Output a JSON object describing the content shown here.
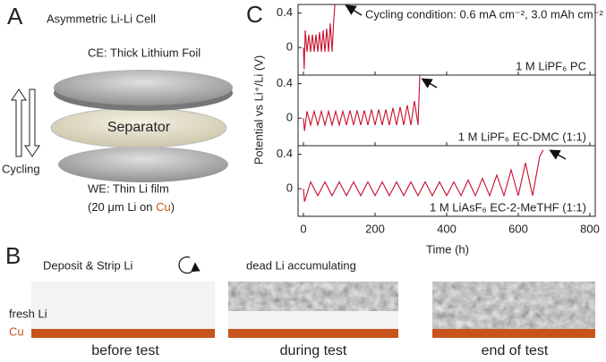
{
  "panel_a": {
    "letter": "A",
    "title": "Asymmetric Li-Li Cell",
    "ce_label": "CE: Thick Lithium Foil",
    "separator_label": "Separator",
    "cycling_label": "Cycling",
    "we_label": "WE: Thin Li film",
    "we_detail": [
      "(20 μm Li on ",
      "Cu",
      ")"
    ]
  },
  "panel_b": {
    "letter": "B",
    "deposit_label": "Deposit & Strip Li",
    "dead_li_label": "dead Li accumulating",
    "fresh_li_label": "fresh Li",
    "cu_label": "Cu",
    "stages": [
      "before test",
      "during test",
      "end of test"
    ]
  },
  "panel_c": {
    "letter": "C",
    "y_label": "Potential vs Li⁺/Li (V)",
    "x_label": "Time (h)",
    "annotation": "Cycling condition: 0.6 mA cm⁻², 3.0 mAh cm⁻²"
  },
  "chart_data": [
    {
      "type": "line",
      "ylim": [
        -0.32,
        0.5
      ],
      "yticks": [
        0,
        0.4
      ],
      "x": [
        0,
        2,
        5,
        10,
        15,
        20,
        25,
        30,
        35,
        40,
        45,
        50,
        55,
        60,
        65,
        70,
        75,
        80,
        85,
        88
      ],
      "series": [
        {
          "name": "1 M LiPF₆ PC",
          "color": "#c8102e",
          "values": [
            0,
            -0.25,
            0.2,
            -0.05,
            0.15,
            -0.05,
            0.15,
            -0.05,
            0.15,
            -0.05,
            0.18,
            -0.05,
            0.2,
            -0.05,
            0.22,
            -0.05,
            0.28,
            -0.05,
            0.35,
            0.5
          ]
        }
      ]
    },
    {
      "type": "line",
      "ylim": [
        -0.32,
        0.5
      ],
      "yticks": [
        0,
        0.4
      ],
      "x": [
        0,
        3,
        10,
        20,
        30,
        40,
        50,
        60,
        70,
        80,
        90,
        100,
        110,
        120,
        130,
        140,
        150,
        160,
        170,
        180,
        190,
        200,
        210,
        220,
        230,
        240,
        250,
        260,
        270,
        280,
        290,
        300,
        310,
        320,
        325
      ],
      "series": [
        {
          "name": "1 M LiPF₆ EC-DMC (1:1)",
          "color": "#c8102e",
          "values": [
            0,
            -0.15,
            0.08,
            -0.08,
            0.08,
            -0.08,
            0.08,
            -0.08,
            0.08,
            -0.08,
            0.08,
            -0.08,
            0.08,
            -0.08,
            0.09,
            -0.08,
            0.09,
            -0.08,
            0.09,
            -0.08,
            0.1,
            -0.08,
            0.1,
            -0.08,
            0.1,
            -0.08,
            0.12,
            -0.08,
            0.13,
            -0.08,
            0.15,
            -0.08,
            0.2,
            -0.08,
            0.5
          ]
        }
      ]
    },
    {
      "type": "line",
      "ylim": [
        -0.32,
        0.5
      ],
      "yticks": [
        0,
        0.4
      ],
      "xlim": [
        -15,
        815
      ],
      "xticks": [
        0,
        200,
        400,
        600,
        800
      ],
      "x": [
        0,
        3,
        20,
        40,
        60,
        80,
        100,
        120,
        140,
        160,
        180,
        200,
        220,
        240,
        260,
        280,
        300,
        320,
        340,
        360,
        380,
        400,
        420,
        440,
        460,
        480,
        500,
        520,
        540,
        560,
        580,
        600,
        620,
        640,
        660,
        670
      ],
      "series": [
        {
          "name": "1 M LiAsF₆ EC-2-MeTHF (1:1)",
          "color": "#c8102e",
          "values": [
            0,
            -0.15,
            0.08,
            -0.08,
            0.08,
            -0.08,
            0.08,
            -0.08,
            0.08,
            -0.08,
            0.08,
            -0.08,
            0.08,
            -0.08,
            0.08,
            -0.08,
            0.08,
            -0.08,
            0.08,
            -0.08,
            0.08,
            -0.08,
            0.08,
            -0.08,
            0.1,
            -0.08,
            0.12,
            -0.08,
            0.16,
            -0.08,
            0.22,
            -0.08,
            0.3,
            -0.08,
            0.38,
            0.45
          ]
        }
      ]
    }
  ]
}
